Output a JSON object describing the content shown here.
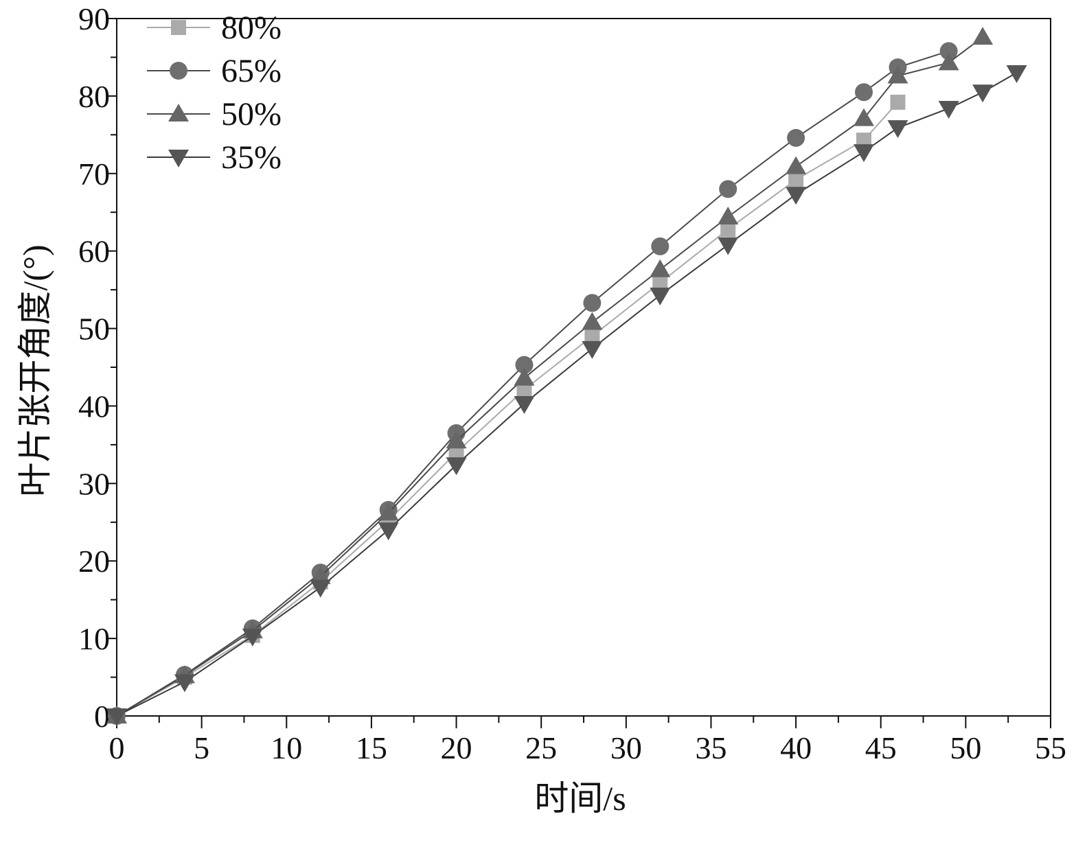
{
  "chart_data": {
    "type": "line",
    "title": "",
    "xlabel": "时间/s",
    "ylabel": "叶片张开角度/(°)",
    "xlim": [
      0,
      55
    ],
    "ylim": [
      0,
      90
    ],
    "xticks": [
      0,
      5,
      10,
      15,
      20,
      25,
      30,
      35,
      40,
      45,
      50,
      55
    ],
    "yticks": [
      0,
      10,
      20,
      30,
      40,
      50,
      60,
      70,
      80,
      90
    ],
    "grid": false,
    "legend_placement": "top-left",
    "series": [
      {
        "name": "80%",
        "marker": "square",
        "color": "#aaaaaa",
        "line_color": "#aaaaaa",
        "x": [
          0,
          4,
          8,
          12,
          16,
          20,
          24,
          28,
          32,
          36,
          40,
          44,
          46
        ],
        "y": [
          0,
          5.0,
          10.4,
          17.3,
          25.2,
          34.0,
          42.1,
          49.0,
          55.9,
          62.8,
          69.2,
          74.3,
          79.2
        ]
      },
      {
        "name": "65%",
        "marker": "circle",
        "color": "#6e6e6e",
        "line_color": "#4a4a4a",
        "x": [
          0,
          4,
          8,
          12,
          16,
          20,
          24,
          28,
          32,
          36,
          40,
          44,
          46,
          49
        ],
        "y": [
          0,
          5.3,
          11.3,
          18.5,
          26.6,
          36.5,
          45.3,
          53.3,
          60.6,
          68.0,
          74.6,
          80.5,
          83.7,
          85.8
        ]
      },
      {
        "name": "50%",
        "marker": "triangle-up",
        "color": "#666666",
        "line_color": "#4a4a4a",
        "x": [
          0,
          4,
          8,
          12,
          16,
          20,
          24,
          28,
          32,
          36,
          40,
          44,
          46,
          49,
          51
        ],
        "y": [
          0,
          5.2,
          11.0,
          18.0,
          26.2,
          35.5,
          43.6,
          50.8,
          57.6,
          64.4,
          70.9,
          77.1,
          82.6,
          84.3,
          87.6
        ]
      },
      {
        "name": "35%",
        "marker": "triangle-down",
        "color": "#555555",
        "line_color": "#3a3a3a",
        "x": [
          0,
          4,
          8,
          12,
          16,
          20,
          24,
          28,
          32,
          36,
          40,
          44,
          46,
          49,
          51,
          53
        ],
        "y": [
          0,
          4.4,
          10.3,
          16.6,
          24.0,
          32.4,
          40.3,
          47.4,
          54.3,
          60.8,
          67.3,
          72.8,
          75.9,
          78.4,
          80.5,
          83.0
        ]
      }
    ]
  }
}
